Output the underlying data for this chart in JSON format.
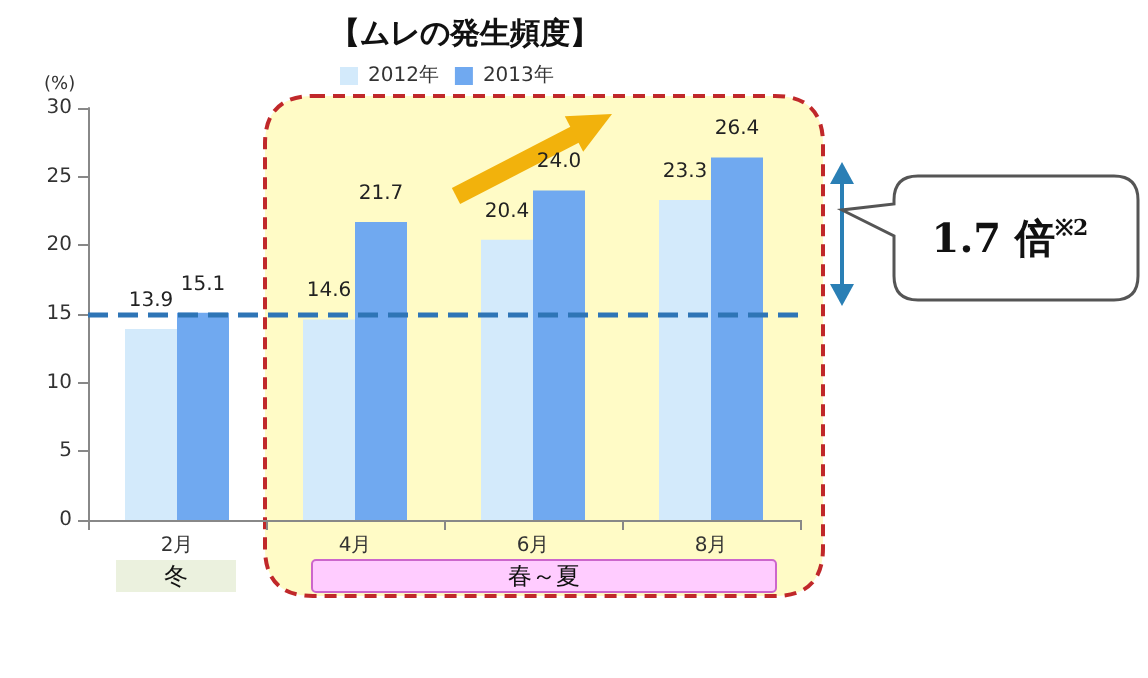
{
  "chart_data": {
    "type": "bar",
    "title": "【ムレの発生頻度】",
    "ylabel": "(%)",
    "categories": [
      "2月",
      "4月",
      "6月",
      "8月"
    ],
    "series": [
      {
        "name": "2012年",
        "color": "#d3eafb",
        "values": [
          13.9,
          14.6,
          20.4,
          23.3
        ],
        "value_labels": [
          "13.9",
          "14.6",
          "20.4",
          "23.3"
        ]
      },
      {
        "name": "2013年",
        "color": "#70a9f0",
        "values": [
          15.1,
          21.7,
          24.0,
          26.4
        ],
        "value_labels": [
          "15.1",
          "21.7",
          "24.0",
          "26.4"
        ]
      }
    ],
    "ylim": [
      0,
      30
    ],
    "yticks": [
      0,
      5,
      10,
      15,
      20,
      25,
      30
    ],
    "grid": false,
    "legend": "top",
    "bands": [
      {
        "axis": "x",
        "from": "4月",
        "to": "8月",
        "color": "#fffbc6"
      }
    ],
    "ref_lines": [
      {
        "axis": "y",
        "value": 15,
        "color": "#2e75b6",
        "line_style": "dashed"
      }
    ],
    "annotations": [
      "1.7 倍$^{※2}$",
      "冬",
      "春～夏"
    ]
  }
}
